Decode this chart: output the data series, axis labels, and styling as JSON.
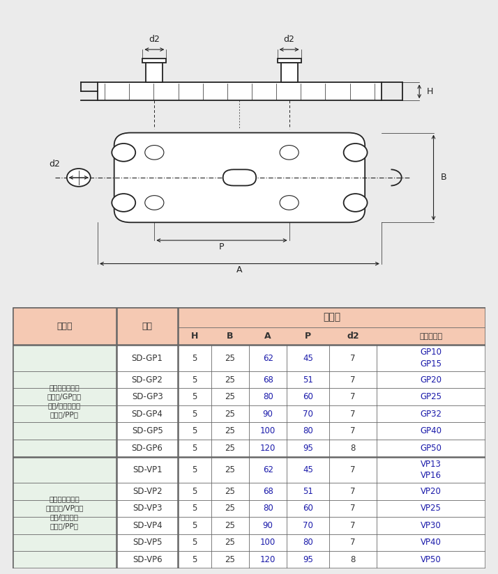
{
  "bg_color": "#ebebeb",
  "diagram_bg": "#ffffff",
  "table_header_color": "#f5c9b3",
  "table_group_color": "#e8f2e8",
  "table_border_color": "#666666",
  "table_title": "サイズ",
  "group1_name_lines": [
    "樹脳サドル台座",
    "（鈴管/GP用）",
    "（色/ホワイト）",
    "（材質/PP）"
  ],
  "group2_name_lines": [
    "樹脳サドル台座",
    "（塩ビ管/VP用）",
    "（色/グレー）",
    "（材質/PP）"
  ],
  "col_header1": "商品名",
  "col_header2": "品番",
  "col_saddle": "適合サドル",
  "rows_gp": [
    {
      "code": "SD-GP1",
      "H": "5",
      "B": "25",
      "A": "62",
      "P": "45",
      "d2": "7",
      "saddle": [
        "GP10",
        "GP15"
      ]
    },
    {
      "code": "SD-GP2",
      "H": "5",
      "B": "25",
      "A": "68",
      "P": "51",
      "d2": "7",
      "saddle": [
        "GP20"
      ]
    },
    {
      "code": "SD-GP3",
      "H": "5",
      "B": "25",
      "A": "80",
      "P": "60",
      "d2": "7",
      "saddle": [
        "GP25"
      ]
    },
    {
      "code": "SD-GP4",
      "H": "5",
      "B": "25",
      "A": "90",
      "P": "70",
      "d2": "7",
      "saddle": [
        "GP32"
      ]
    },
    {
      "code": "SD-GP5",
      "H": "5",
      "B": "25",
      "A": "100",
      "P": "80",
      "d2": "7",
      "saddle": [
        "GP40"
      ]
    },
    {
      "code": "SD-GP6",
      "H": "5",
      "B": "25",
      "A": "120",
      "P": "95",
      "d2": "8",
      "saddle": [
        "GP50"
      ]
    }
  ],
  "rows_vp": [
    {
      "code": "SD-VP1",
      "H": "5",
      "B": "25",
      "A": "62",
      "P": "45",
      "d2": "7",
      "saddle": [
        "VP13",
        "VP16"
      ]
    },
    {
      "code": "SD-VP2",
      "H": "5",
      "B": "25",
      "A": "68",
      "P": "51",
      "d2": "7",
      "saddle": [
        "VP20"
      ]
    },
    {
      "code": "SD-VP3",
      "H": "5",
      "B": "25",
      "A": "80",
      "P": "60",
      "d2": "7",
      "saddle": [
        "VP25"
      ]
    },
    {
      "code": "SD-VP4",
      "H": "5",
      "B": "25",
      "A": "90",
      "P": "70",
      "d2": "7",
      "saddle": [
        "VP30"
      ]
    },
    {
      "code": "SD-VP5",
      "H": "5",
      "B": "25",
      "A": "100",
      "P": "80",
      "d2": "7",
      "saddle": [
        "VP40"
      ]
    },
    {
      "code": "SD-VP6",
      "H": "5",
      "B": "25",
      "A": "120",
      "P": "95",
      "d2": "8",
      "saddle": [
        "VP50"
      ]
    }
  ],
  "line_color": "#222222",
  "highlight_color": "#1a1aaa",
  "normal_color": "#333333"
}
